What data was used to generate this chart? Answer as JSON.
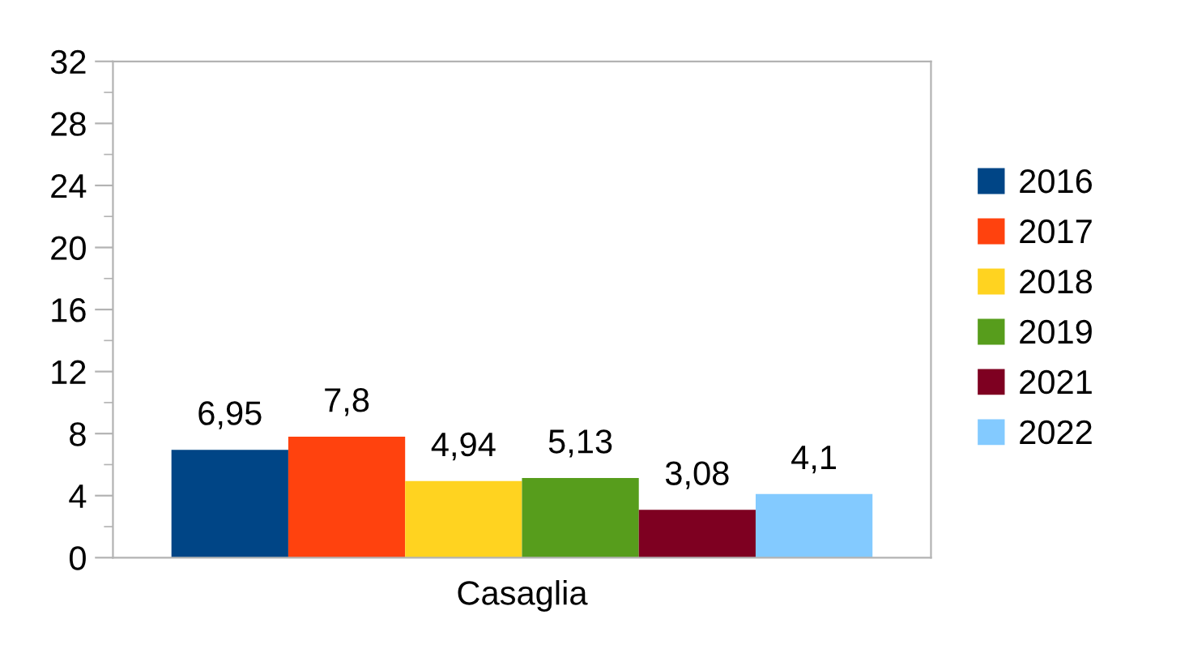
{
  "chart_data": {
    "type": "bar",
    "categories": [
      "Casaglia"
    ],
    "series": [
      {
        "name": "2016",
        "color": "#004586",
        "values": [
          6.95
        ],
        "value_labels": [
          "6,95"
        ]
      },
      {
        "name": "2017",
        "color": "#ff420e",
        "values": [
          7.8
        ],
        "value_labels": [
          "7,8"
        ]
      },
      {
        "name": "2018",
        "color": "#ffd320",
        "values": [
          4.94
        ],
        "value_labels": [
          "4,94"
        ]
      },
      {
        "name": "2019",
        "color": "#579d1c",
        "values": [
          5.13
        ],
        "value_labels": [
          "5,13"
        ]
      },
      {
        "name": "2021",
        "color": "#7e0021",
        "values": [
          3.08
        ],
        "value_labels": [
          "3,08"
        ]
      },
      {
        "name": "2022",
        "color": "#83caff",
        "values": [
          4.1
        ],
        "value_labels": [
          "4,1"
        ]
      }
    ],
    "ylim": [
      0,
      32
    ],
    "yticks": [
      0,
      4,
      8,
      12,
      16,
      20,
      24,
      28,
      32
    ],
    "grid": false,
    "legend": "right"
  }
}
